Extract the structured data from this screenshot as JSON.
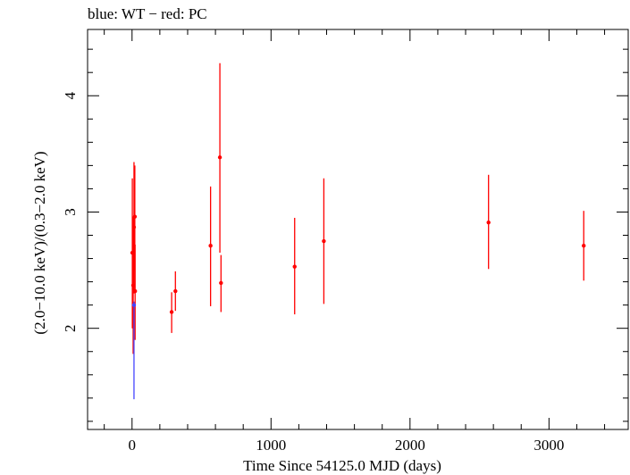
{
  "chart_data": {
    "type": "scatter",
    "title": "blue: WT − red: PC",
    "xlabel": "Time Since 54125.0 MJD (days)",
    "ylabel": "(2.0−10.0 keV)/(0.3−2.0 keV)",
    "xlim": [
      -320,
      3570
    ],
    "ylim": [
      1.13,
      4.57
    ],
    "xticks": [
      0,
      1000,
      2000,
      3000
    ],
    "yticks": [
      2,
      3,
      4
    ],
    "grid": false,
    "series": [
      {
        "color": "#4444ff",
        "points": [
          {
            "x": 14,
            "y": 2.2,
            "ylo": 1.39,
            "yhi": 2.23
          }
        ]
      },
      {
        "color": "#ff0000",
        "points": [
          {
            "x": 2,
            "y": 2.65,
            "ylo": 2.0,
            "yhi": 3.29
          },
          {
            "x": 8,
            "y": 2.37,
            "ylo": 1.78,
            "yhi": 2.96
          },
          {
            "x": 14,
            "y": 2.87,
            "ylo": 2.3,
            "yhi": 3.43
          },
          {
            "x": 20,
            "y": 2.96,
            "ylo": 2.5,
            "yhi": 3.4
          },
          {
            "x": 22,
            "y": 2.32,
            "ylo": 1.9,
            "yhi": 2.72
          },
          {
            "x": 285,
            "y": 2.14,
            "ylo": 1.96,
            "yhi": 2.31
          },
          {
            "x": 312,
            "y": 2.32,
            "ylo": 2.15,
            "yhi": 2.49
          },
          {
            "x": 565,
            "y": 2.71,
            "ylo": 2.19,
            "yhi": 3.22
          },
          {
            "x": 632,
            "y": 3.47,
            "ylo": 2.65,
            "yhi": 4.28
          },
          {
            "x": 640,
            "y": 2.39,
            "ylo": 2.14,
            "yhi": 2.63
          },
          {
            "x": 1170,
            "y": 2.53,
            "ylo": 2.12,
            "yhi": 2.95
          },
          {
            "x": 1380,
            "y": 2.75,
            "ylo": 2.21,
            "yhi": 3.29
          },
          {
            "x": 2565,
            "y": 2.91,
            "ylo": 2.51,
            "yhi": 3.32
          },
          {
            "x": 3250,
            "y": 2.71,
            "ylo": 2.41,
            "yhi": 3.01
          }
        ]
      }
    ]
  }
}
